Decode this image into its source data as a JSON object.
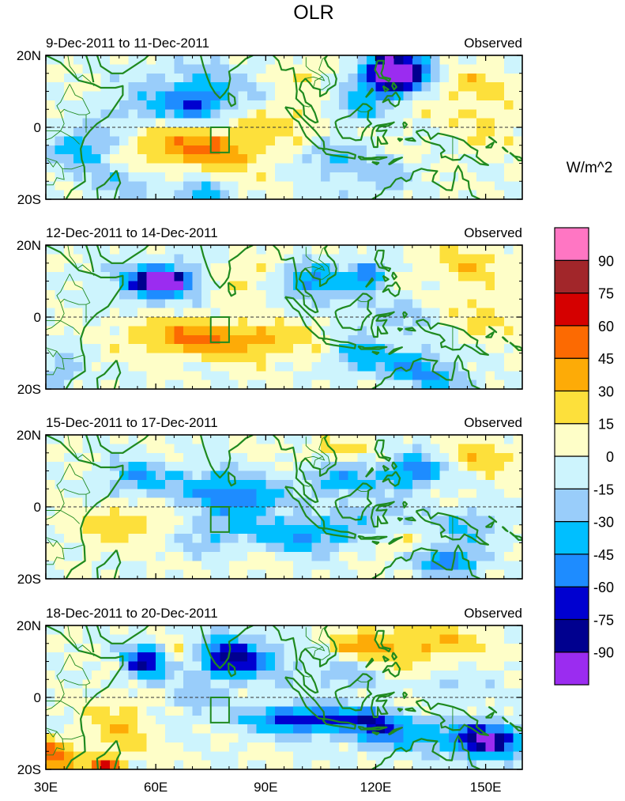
{
  "chart_data": {
    "type": "heatmap",
    "title": "OLR",
    "units_label": "W/m^2",
    "panels": [
      {
        "left_label": "9-Dec-2011 to 11-Dec-2011",
        "right_label": "Observed"
      },
      {
        "left_label": "12-Dec-2011 to 14-Dec-2011",
        "right_label": "Observed"
      },
      {
        "left_label": "15-Dec-2011 to 17-Dec-2011",
        "right_label": "Observed"
      },
      {
        "left_label": "18-Dec-2011 to 20-Dec-2011",
        "right_label": "Observed"
      }
    ],
    "lat_range": [
      -20,
      20
    ],
    "lon_range": [
      30,
      160
    ],
    "y_ticks": [
      {
        "value": 20,
        "label": "20N"
      },
      {
        "value": 0,
        "label": "0"
      },
      {
        "value": -20,
        "label": "20S"
      }
    ],
    "x_ticks": [
      {
        "value": 30,
        "label": "30E"
      },
      {
        "value": 60,
        "label": "60E"
      },
      {
        "value": 90,
        "label": "90E"
      },
      {
        "value": 120,
        "label": "120E"
      },
      {
        "value": 150,
        "label": "150E"
      }
    ],
    "box_region": {
      "lon": [
        75,
        80
      ],
      "lat": [
        -7,
        0
      ]
    },
    "colorbar": {
      "colors": [
        "#9b2cf0",
        "#00008f",
        "#0000d0",
        "#1e8cff",
        "#00bfff",
        "#99cdfa",
        "#cdf4fd",
        "#fefec8",
        "#fde03b",
        "#fdab07",
        "#fc6a02",
        "#d50000",
        "#a2262a",
        "#ff76c3"
      ],
      "labels": [
        "-90",
        "-75",
        "-60",
        "-45",
        "-30",
        "-15",
        "0",
        "15",
        "30",
        "45",
        "60",
        "75",
        "90"
      ]
    },
    "anomaly_centers": [
      [
        [
          125,
          15,
          -100,
          7,
          5
        ],
        [
          127,
          13,
          -55,
          12,
          8
        ],
        [
          75,
          12,
          -20,
          20,
          8
        ],
        [
          72,
          7,
          -50,
          8,
          5
        ],
        [
          40,
          -6,
          -45,
          9,
          6
        ],
        [
          58,
          5,
          -25,
          12,
          6
        ],
        [
          65,
          -5,
          35,
          14,
          6
        ],
        [
          80,
          -6,
          30,
          12,
          6
        ],
        [
          95,
          2,
          20,
          10,
          6
        ],
        [
          50,
          -16,
          -25,
          10,
          4
        ],
        [
          72,
          -18,
          -45,
          6,
          3
        ],
        [
          108,
          -8,
          -30,
          8,
          4
        ],
        [
          115,
          5,
          -25,
          8,
          5
        ],
        [
          130,
          8,
          25,
          10,
          6
        ],
        [
          145,
          12,
          25,
          12,
          6
        ],
        [
          150,
          0,
          15,
          10,
          8
        ],
        [
          120,
          -14,
          -25,
          12,
          5
        ],
        [
          100,
          15,
          20,
          10,
          5
        ]
      ],
      [
        [
          62,
          10,
          -95,
          7,
          3
        ],
        [
          60,
          10,
          -45,
          14,
          6
        ],
        [
          85,
          -7,
          35,
          20,
          5
        ],
        [
          65,
          -5,
          30,
          14,
          5
        ],
        [
          100,
          12,
          -40,
          8,
          5
        ],
        [
          106,
          8,
          -30,
          8,
          5
        ],
        [
          118,
          12,
          -60,
          5,
          4
        ],
        [
          115,
          -10,
          -40,
          8,
          5
        ],
        [
          130,
          -14,
          -45,
          10,
          5
        ],
        [
          145,
          15,
          25,
          12,
          6
        ],
        [
          150,
          0,
          20,
          10,
          6
        ],
        [
          125,
          0,
          -20,
          10,
          5
        ],
        [
          95,
          15,
          15,
          10,
          5
        ],
        [
          80,
          10,
          20,
          8,
          5
        ],
        [
          140,
          -18,
          -30,
          8,
          3
        ],
        [
          34,
          -15,
          -30,
          5,
          5
        ]
      ],
      [
        [
          55,
          8,
          -40,
          10,
          5
        ],
        [
          75,
          5,
          -35,
          10,
          6
        ],
        [
          85,
          2,
          -45,
          10,
          6
        ],
        [
          110,
          8,
          -45,
          10,
          5
        ],
        [
          130,
          10,
          -60,
          8,
          5
        ],
        [
          100,
          -8,
          -50,
          14,
          5
        ],
        [
          140,
          -15,
          -65,
          8,
          4
        ],
        [
          145,
          -5,
          -30,
          10,
          5
        ],
        [
          120,
          -2,
          -25,
          10,
          5
        ],
        [
          50,
          -5,
          25,
          12,
          6
        ],
        [
          110,
          15,
          20,
          10,
          5
        ],
        [
          150,
          14,
          25,
          10,
          5
        ],
        [
          75,
          -8,
          -30,
          8,
          5
        ],
        [
          90,
          -14,
          10,
          10,
          5
        ],
        [
          125,
          -10,
          15,
          8,
          4
        ]
      ],
      [
        [
          57,
          10,
          -75,
          6,
          5
        ],
        [
          80,
          11,
          -75,
          9,
          6
        ],
        [
          100,
          -6,
          -70,
          16,
          4
        ],
        [
          125,
          -10,
          -45,
          14,
          5
        ],
        [
          150,
          -12,
          -90,
          10,
          5
        ],
        [
          112,
          7,
          -35,
          8,
          5
        ],
        [
          135,
          15,
          30,
          15,
          6
        ],
        [
          115,
          13,
          35,
          10,
          5
        ],
        [
          50,
          -8,
          30,
          8,
          8
        ],
        [
          32,
          -17,
          50,
          6,
          5
        ],
        [
          46,
          -19,
          55,
          5,
          3
        ],
        [
          92,
          10,
          -20,
          12,
          6
        ],
        [
          70,
          0,
          -20,
          8,
          5
        ],
        [
          140,
          3,
          -20,
          10,
          5
        ],
        [
          65,
          14,
          15,
          6,
          5
        ],
        [
          130,
          -2,
          15,
          8,
          4
        ],
        [
          120,
          -6,
          -35,
          8,
          4
        ]
      ]
    ]
  }
}
